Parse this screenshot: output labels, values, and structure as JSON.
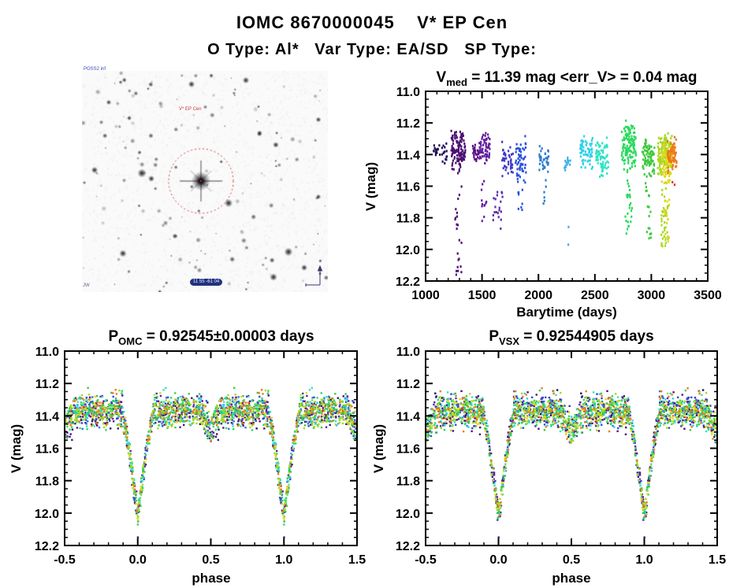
{
  "header": {
    "title": "IOMC 8670000045    V* EP Cen",
    "subtitle": "O Type: Al*   Var Type: EA/SD   SP Type:"
  },
  "finder": {
    "survey_label": "POSS2 inf",
    "target_label": "V* EP Cen",
    "coords_label": "11 55 -61 04",
    "corner_label": "JW",
    "circle_color": "#d23c3c"
  },
  "chart_data": [
    {
      "id": "timeplot",
      "type": "scatter",
      "title": {
        "prefix": "V",
        "sub": "med",
        "rest": " = 11.39 mag <err_V> = 0.04 mag"
      },
      "xlabel": "Barytime (days)",
      "ylabel": "V (mag)",
      "xlim": [
        1000,
        3500
      ],
      "ylim": [
        11.0,
        12.2
      ],
      "y_axis_inverted_magnitudes": true,
      "grid": false,
      "xticks": {
        "major": [
          1000,
          1500,
          2000,
          2500,
          3000,
          3500
        ],
        "labels": [
          "1000",
          "1500",
          "2000",
          "2500",
          "3000",
          "3500"
        ],
        "minor_step": 100
      },
      "yticks": {
        "major": [
          11.0,
          11.2,
          11.4,
          11.6,
          11.8,
          12.0,
          12.2
        ],
        "labels": [
          "11.0",
          "11.2",
          "11.4",
          "11.6",
          "11.8",
          "12.0",
          "12.2"
        ],
        "minor_step": 0.05
      },
      "clusters": [
        {
          "t": 1095,
          "color": "#1e0d55",
          "n": 14,
          "base": [
            11.32,
            11.42
          ],
          "tail": null,
          "ntail": 0,
          "jx": 4
        },
        {
          "t": 1160,
          "color": "#250f60",
          "n": 16,
          "base": [
            11.3,
            11.52
          ],
          "tail": null,
          "ntail": 0,
          "jx": 5
        },
        {
          "t": 1290,
          "color": "#4d0f72",
          "n": 130,
          "base": [
            11.24,
            11.53
          ],
          "tail": 12.16,
          "ntail": 22,
          "jx": 9
        },
        {
          "t": 1460,
          "color": "#5a1287",
          "n": 26,
          "base": [
            11.33,
            11.46
          ],
          "tail": null,
          "ntail": 0,
          "jx": 6
        },
        {
          "t": 1520,
          "color": "#611e9e",
          "n": 55,
          "base": [
            11.24,
            11.48
          ],
          "tail": 11.82,
          "ntail": 12,
          "jx": 7
        },
        {
          "t": 1640,
          "color": "#5b2cae",
          "n": 20,
          "base": [
            11.6,
            11.91
          ],
          "tail": null,
          "ntail": 0,
          "jx": 6
        },
        {
          "t": 1725,
          "color": "#4038c8",
          "n": 42,
          "base": [
            11.29,
            11.56
          ],
          "tail": null,
          "ntail": 0,
          "jx": 7
        },
        {
          "t": 1845,
          "color": "#2b50dd",
          "n": 55,
          "base": [
            11.28,
            11.6
          ],
          "tail": 11.75,
          "ntail": 8,
          "jx": 7
        },
        {
          "t": 2050,
          "color": "#2e7ad0",
          "n": 36,
          "base": [
            11.33,
            11.52
          ],
          "tail": 11.71,
          "ntail": 6,
          "jx": 6
        },
        {
          "t": 2255,
          "color": "#3fb0e8",
          "n": 14,
          "base": [
            11.4,
            11.52
          ],
          "tail": 11.97,
          "ntail": 2,
          "jx": 4
        },
        {
          "t": 2425,
          "color": "#2fd0e8",
          "n": 60,
          "base": [
            11.25,
            11.5
          ],
          "tail": null,
          "ntail": 0,
          "jx": 8
        },
        {
          "t": 2565,
          "color": "#2fe2c5",
          "n": 70,
          "base": [
            11.28,
            11.55
          ],
          "tail": null,
          "ntail": 0,
          "jx": 8
        },
        {
          "t": 2800,
          "color": "#2ada5e",
          "n": 130,
          "base": [
            11.18,
            11.52
          ],
          "tail": 11.9,
          "ntail": 25,
          "jx": 9
        },
        {
          "t": 2975,
          "color": "#3fc83f",
          "n": 90,
          "base": [
            11.28,
            11.56
          ],
          "tail": 11.93,
          "ntail": 18,
          "jx": 8
        },
        {
          "t": 3120,
          "color": "#a8d820",
          "n": 150,
          "base": [
            11.25,
            11.56
          ],
          "tail": 11.98,
          "ntail": 40,
          "jx": 9
        },
        {
          "t": 3135,
          "color": "#e0d818",
          "n": 60,
          "base": [
            11.3,
            11.6
          ],
          "tail": 11.95,
          "ntail": 15,
          "jx": 7
        },
        {
          "t": 3185,
          "color": "#f07818",
          "n": 70,
          "base": [
            11.28,
            11.52
          ],
          "tail": null,
          "ntail": 0,
          "jx": 6
        },
        {
          "t": 3195,
          "color": "#e03010",
          "n": 2,
          "base": [
            11.56,
            11.6
          ],
          "tail": null,
          "ntail": 0,
          "jx": 2
        }
      ]
    },
    {
      "id": "phase_omc",
      "type": "scatter",
      "title": {
        "prefix": "P",
        "sub": "OMC",
        "rest": " = 0.92545±0.00003 days"
      },
      "xlabel": "phase",
      "ylabel": "V (mag)",
      "xlim": [
        -0.5,
        1.5
      ],
      "ylim": [
        11.0,
        12.2
      ],
      "grid": false,
      "xticks": {
        "major": [
          -0.5,
          0,
          0.5,
          1,
          1.5
        ],
        "labels": [
          "-0.5",
          "0.0",
          "0.5",
          "1.0",
          "1.5"
        ],
        "minor_step": 0.1
      },
      "yticks": {
        "major": [
          11.0,
          11.2,
          11.4,
          11.6,
          11.8,
          12.0,
          12.2
        ],
        "labels": [
          "11.0",
          "11.2",
          "11.4",
          "11.6",
          "11.8",
          "12.0",
          "12.2"
        ],
        "minor_step": 0.05
      },
      "model": {
        "baseline_mag": 11.37,
        "baseline_scatter": 0.05,
        "primary_eclipse": {
          "center": 0.0,
          "depth": 0.62,
          "half_width": 0.105
        },
        "secondary_eclipse": {
          "center": 0.5,
          "depth": 0.13,
          "half_width": 0.085
        },
        "outlier": {
          "phase": 0.0,
          "mag": 12.15,
          "color": "#231065"
        }
      }
    },
    {
      "id": "phase_vsx",
      "type": "scatter",
      "title": {
        "prefix": "P",
        "sub": "VSX",
        "rest": " = 0.92544905 days"
      },
      "xlabel": "phase",
      "ylabel": "V (mag)",
      "xlim": [
        -0.5,
        1.5
      ],
      "ylim": [
        11.0,
        12.2
      ],
      "grid": false,
      "xticks": {
        "major": [
          -0.5,
          0,
          0.5,
          1,
          1.5
        ],
        "labels": [
          "-0.5",
          "0.0",
          "0.5",
          "1.0",
          "1.5"
        ],
        "minor_step": 0.1
      },
      "yticks": {
        "major": [
          11.0,
          11.2,
          11.4,
          11.6,
          11.8,
          12.0,
          12.2
        ],
        "labels": [
          "11.0",
          "11.2",
          "11.4",
          "11.6",
          "11.8",
          "12.0",
          "12.2"
        ],
        "minor_step": 0.05
      },
      "model": {
        "baseline_mag": 11.37,
        "baseline_scatter": 0.05,
        "primary_eclipse": {
          "center": 0.0,
          "depth": 0.62,
          "half_width": 0.105
        },
        "secondary_eclipse": {
          "center": 0.5,
          "depth": 0.13,
          "half_width": 0.085
        },
        "outlier": {
          "phase": 0.0,
          "mag": 12.15,
          "color": "#231065"
        }
      }
    }
  ]
}
